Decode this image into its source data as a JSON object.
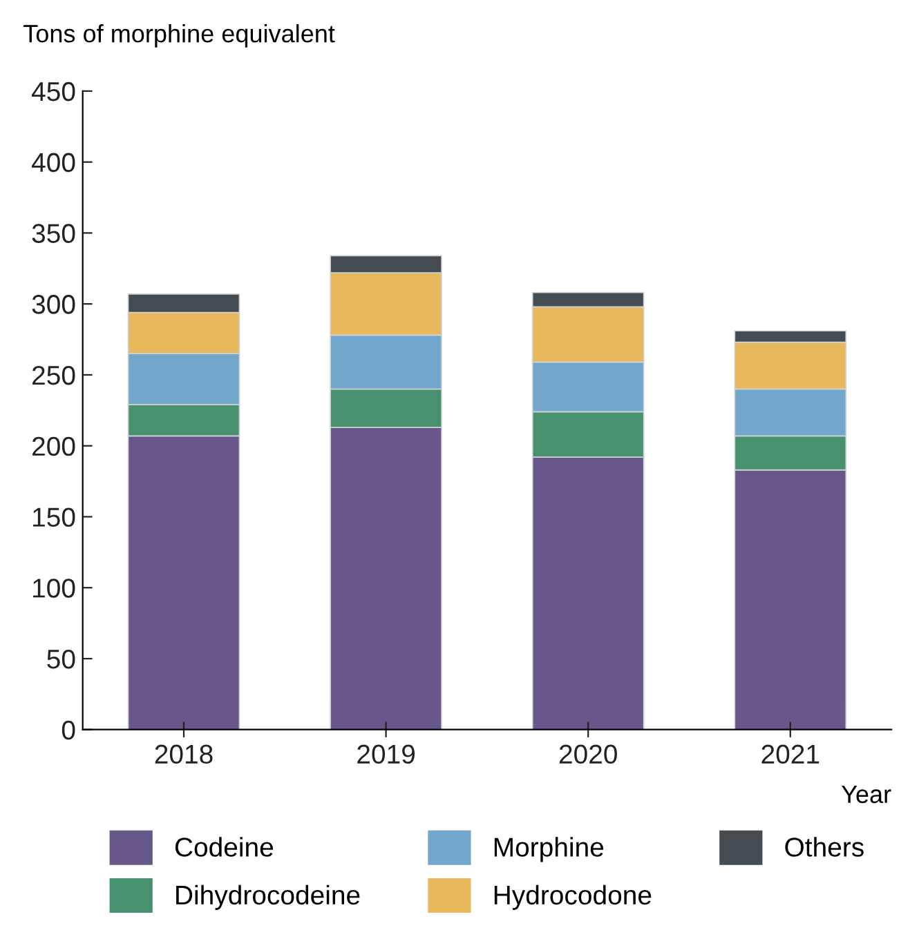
{
  "chart_data": {
    "type": "bar",
    "stacked": true,
    "ylabel": "Tons of morphine equivalent",
    "xlabel": "Year",
    "categories": [
      "2018",
      "2019",
      "2020",
      "2021"
    ],
    "series": [
      {
        "name": "Codeine",
        "color": "#67578a",
        "values": [
          207,
          213,
          192,
          183
        ]
      },
      {
        "name": "Dihydrocodeine",
        "color": "#48916e",
        "values": [
          22,
          27,
          32,
          24
        ]
      },
      {
        "name": "Morphine",
        "color": "#72a7cb",
        "values": [
          36,
          38,
          35,
          33
        ]
      },
      {
        "name": "Hydrocodone",
        "color": "#e8b85c",
        "values": [
          29,
          44,
          39,
          33
        ]
      },
      {
        "name": "Others",
        "color": "#454c51",
        "values": [
          13,
          12,
          10,
          8
        ]
      }
    ],
    "ylim": [
      0,
      450
    ],
    "yticks": [
      0,
      50,
      100,
      150,
      200,
      250,
      300,
      350,
      400,
      450
    ],
    "grid": false,
    "legend": "bottom"
  }
}
